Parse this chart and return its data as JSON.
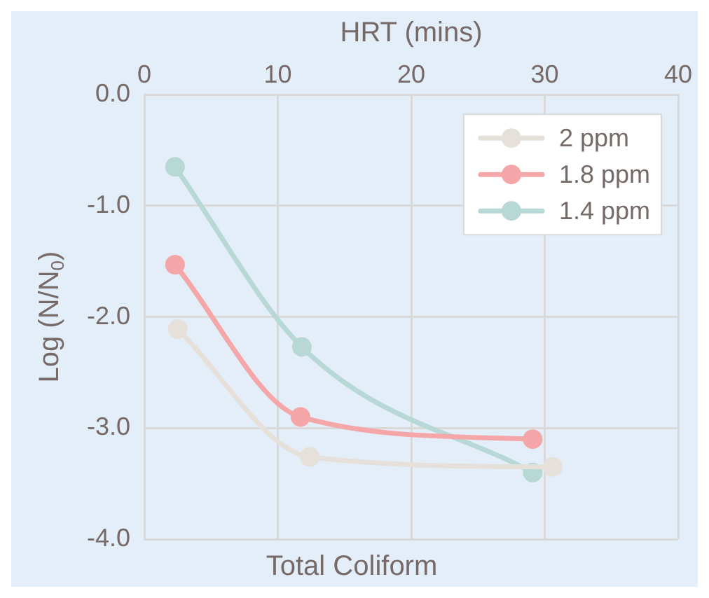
{
  "chart_data": {
    "type": "line",
    "title": "Total Coliform",
    "xlabel": "HRT (mins)",
    "ylabel": "Log (N/N$_{0}$)",
    "xlim": [
      0,
      40
    ],
    "xticks": [
      0,
      10,
      20,
      30,
      40
    ],
    "ylim": [
      -4,
      0
    ],
    "yticks": [
      {
        "value": 0,
        "label": "0.0"
      },
      {
        "value": -1,
        "label": "-1.0"
      },
      {
        "value": -2,
        "label": "-2.0"
      },
      {
        "value": -3,
        "label": "-3.0"
      },
      {
        "value": -4,
        "label": "-4.0"
      }
    ],
    "grid": true,
    "legend": "top right",
    "marker": "circle",
    "line_style": "solid",
    "series": [
      {
        "name": "2 ppm",
        "color": "#e6e0da",
        "x": [
          2.5,
          12.4,
          30.6
        ],
        "values": [
          -2.11,
          -3.26,
          -3.35
        ]
      },
      {
        "name": "1.8 ppm",
        "color": "#f4a6a9",
        "x": [
          2.3,
          11.7,
          29.1
        ],
        "values": [
          -1.53,
          -2.9,
          -3.1
        ]
      },
      {
        "name": "1.4 ppm",
        "color": "#b7d8d4",
        "x": [
          2.3,
          11.8,
          29.1
        ],
        "values": [
          -0.65,
          -2.27,
          -3.4
        ]
      }
    ]
  }
}
